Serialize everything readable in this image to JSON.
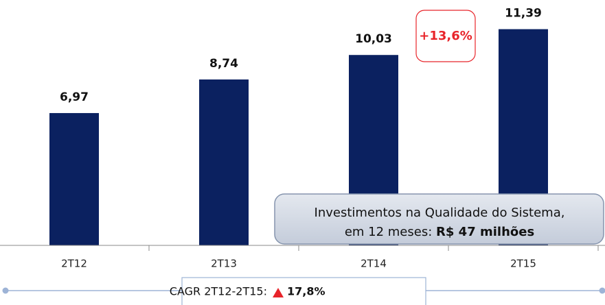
{
  "chart_data": {
    "type": "bar",
    "categories": [
      "2T12",
      "2T13",
      "2T14",
      "2T15"
    ],
    "values": [
      6.97,
      8.74,
      10.03,
      11.39
    ],
    "value_labels": [
      "6,97",
      "8,74",
      "10,03",
      "11,39"
    ],
    "color": "#0b2160",
    "ylim": [
      0,
      12.8
    ],
    "annotations": {
      "growth": "+13,6%",
      "callout_line1": "Investimentos na Qualidade do Sistema,",
      "callout_line2": "em 12 meses:",
      "callout_bold": "R$ 47 milhões",
      "cagr_label": "CAGR 2T12-2T15:",
      "cagr_value": "17,8%"
    }
  }
}
